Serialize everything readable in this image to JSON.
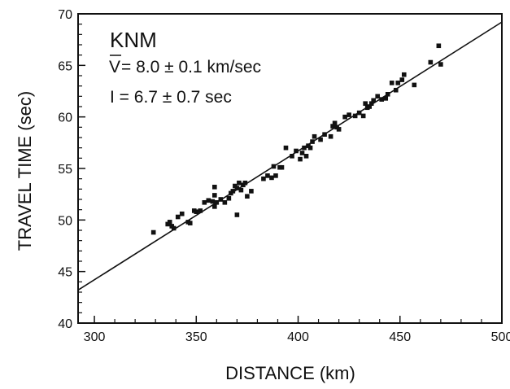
{
  "chart_data": {
    "type": "scatter",
    "title": "",
    "xlabel": "DISTANCE (km)",
    "ylabel": "TRAVEL TIME (sec)",
    "xlim": [
      292,
      500
    ],
    "ylim": [
      40,
      70
    ],
    "x_ticks": [
      300,
      350,
      400,
      450,
      500
    ],
    "y_ticks": [
      40,
      45,
      50,
      55,
      60,
      65,
      70
    ],
    "grid": false,
    "annotations": {
      "station": "KNM",
      "velocity_label": "V",
      "velocity_value": " = 8.0 ± 0.1 km/sec",
      "intercept": "I = 6.7 ± 0.7 sec"
    },
    "fit_line": {
      "slope": 0.125,
      "intercept": 6.7,
      "x_range": [
        292,
        500
      ]
    },
    "points": [
      [
        329,
        48.8
      ],
      [
        336,
        49.6
      ],
      [
        337,
        49.8
      ],
      [
        338,
        49.4
      ],
      [
        339,
        49.2
      ],
      [
        341,
        50.3
      ],
      [
        343,
        50.6
      ],
      [
        346,
        49.8
      ],
      [
        347,
        49.7
      ],
      [
        349,
        50.9
      ],
      [
        350,
        50.8
      ],
      [
        352,
        50.9
      ],
      [
        354,
        51.7
      ],
      [
        356,
        51.9
      ],
      [
        358,
        51.8
      ],
      [
        359,
        51.3
      ],
      [
        359,
        52.4
      ],
      [
        359,
        53.2
      ],
      [
        360,
        51.7
      ],
      [
        362,
        52.0
      ],
      [
        364,
        51.7
      ],
      [
        366,
        52.1
      ],
      [
        367,
        52.6
      ],
      [
        368,
        52.8
      ],
      [
        369,
        53.3
      ],
      [
        370,
        53.1
      ],
      [
        370,
        50.5
      ],
      [
        371,
        53.6
      ],
      [
        372,
        52.9
      ],
      [
        373,
        53.4
      ],
      [
        374,
        53.6
      ],
      [
        375,
        52.3
      ],
      [
        377,
        52.8
      ],
      [
        383,
        54.0
      ],
      [
        385,
        54.3
      ],
      [
        387,
        54.1
      ],
      [
        388,
        55.2
      ],
      [
        389,
        54.3
      ],
      [
        391,
        55.1
      ],
      [
        392,
        55.1
      ],
      [
        394,
        57.0
      ],
      [
        397,
        56.2
      ],
      [
        399,
        56.7
      ],
      [
        401,
        55.9
      ],
      [
        402,
        56.5
      ],
      [
        403,
        57.0
      ],
      [
        404,
        56.2
      ],
      [
        405,
        57.2
      ],
      [
        406,
        57.0
      ],
      [
        407,
        57.6
      ],
      [
        408,
        58.1
      ],
      [
        411,
        57.8
      ],
      [
        413,
        58.3
      ],
      [
        416,
        58.1
      ],
      [
        417,
        59.1
      ],
      [
        418,
        59.4
      ],
      [
        419,
        59.0
      ],
      [
        420,
        58.8
      ],
      [
        423,
        60.0
      ],
      [
        425,
        60.2
      ],
      [
        428,
        60.1
      ],
      [
        430,
        60.4
      ],
      [
        432,
        60.1
      ],
      [
        433,
        61.3
      ],
      [
        434,
        60.9
      ],
      [
        435,
        61.0
      ],
      [
        436,
        61.3
      ],
      [
        437,
        61.6
      ],
      [
        439,
        62.0
      ],
      [
        441,
        61.7
      ],
      [
        443,
        61.8
      ],
      [
        444,
        62.2
      ],
      [
        446,
        63.3
      ],
      [
        448,
        62.6
      ],
      [
        449,
        63.3
      ],
      [
        451,
        63.6
      ],
      [
        452,
        64.1
      ],
      [
        457,
        63.1
      ],
      [
        465,
        65.3
      ],
      [
        469,
        66.9
      ],
      [
        470,
        65.1
      ]
    ]
  }
}
